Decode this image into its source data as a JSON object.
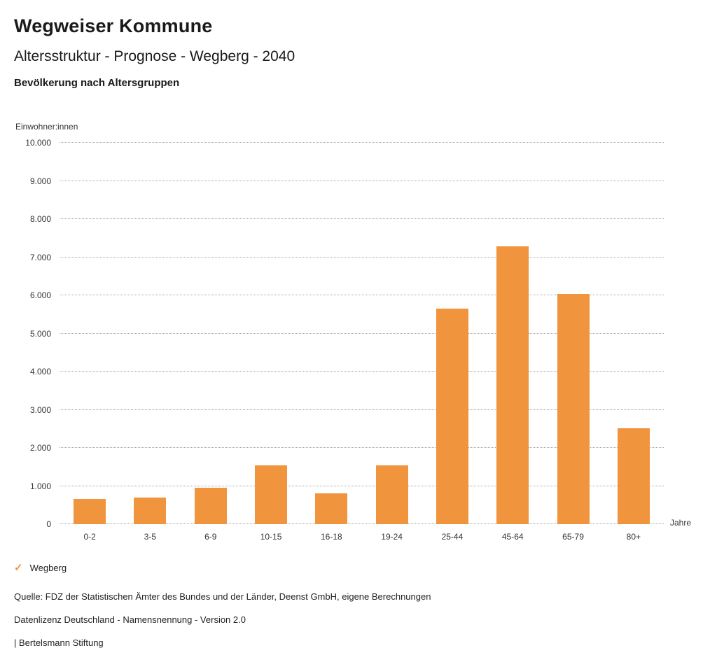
{
  "header": {
    "title": "Wegweiser Kommune",
    "subtitle": "Altersstruktur - Prognose - Wegberg - 2040",
    "chart_heading": "Bevölkerung nach Altersgruppen"
  },
  "chart_data": {
    "type": "bar",
    "title": "Bevölkerung nach Altersgruppen",
    "ylabel": "Einwohner:innen",
    "xlabel": "Jahre",
    "categories": [
      "0-2",
      "3-5",
      "6-9",
      "10-15",
      "16-18",
      "19-24",
      "25-44",
      "45-64",
      "65-79",
      "80+"
    ],
    "series": [
      {
        "name": "Wegberg",
        "color": "#F0943E",
        "values": [
          660,
          690,
          950,
          1550,
          810,
          1550,
          5650,
          7280,
          6030,
          2520
        ]
      }
    ],
    "ylim": [
      0,
      10000
    ],
    "ytick_step": 1000,
    "ytick_labels": [
      "0",
      "1.000",
      "2.000",
      "3.000",
      "4.000",
      "5.000",
      "6.000",
      "7.000",
      "8.000",
      "9.000",
      "10.000"
    ],
    "grid": true,
    "legend_position": "bottom-left"
  },
  "legend": {
    "check_icon": "✓",
    "label": "Wegberg",
    "color": "#F0943E"
  },
  "footer": {
    "source": "Quelle: FDZ der Statistischen Ämter des Bundes und der Länder, Deenst GmbH, eigene Berechnungen",
    "license": "Datenlizenz Deutschland - Namensnennung - Version 2.0",
    "attribution": "| Bertelsmann Stiftung"
  }
}
